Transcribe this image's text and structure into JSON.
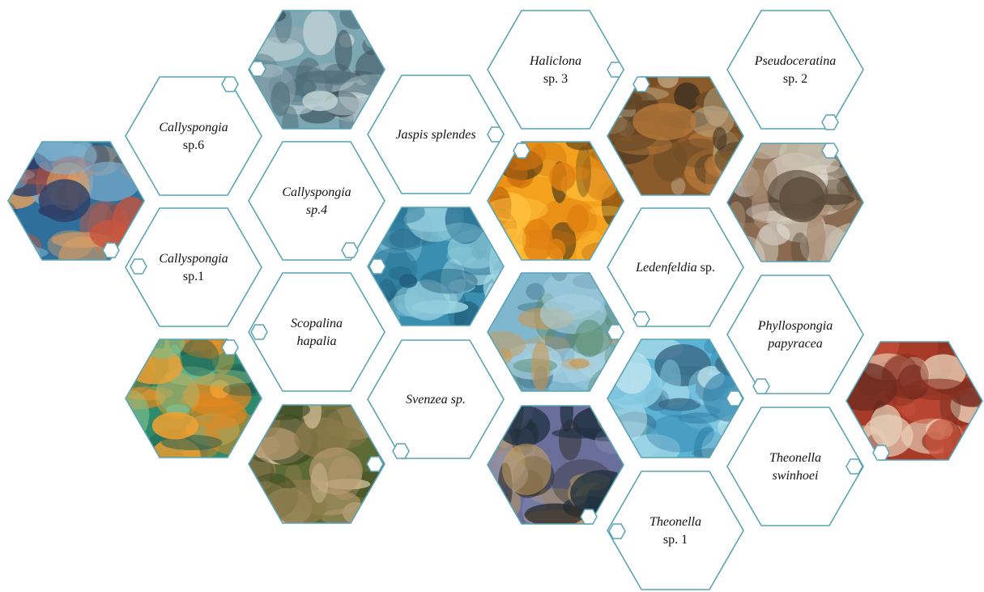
{
  "colors": {
    "outline": "#5aa3b5",
    "text": "#111111"
  },
  "cells": [
    {
      "kind": "photo",
      "photo": "blue-branching-sponge-reef",
      "palette": [
        "#2f6f9c",
        "#7fb0cf",
        "#c8553d",
        "#2e3f66",
        "#e0a060"
      ]
    },
    {
      "kind": "label",
      "parts": [
        {
          "t": "Callyspongia",
          "i": true
        },
        {
          "t": "sp.6",
          "i": false,
          "br": true
        }
      ]
    },
    {
      "kind": "label",
      "parts": [
        {
          "t": "Callyspongia",
          "i": true
        },
        {
          "t": "sp.1",
          "i": false,
          "br": true
        }
      ]
    },
    {
      "kind": "photo",
      "photo": "orange-encrusting-sponge-green-reef",
      "palette": [
        "#2e8a6a",
        "#e8861c",
        "#f2a030",
        "#1f5f55",
        "#7fbf8f"
      ]
    },
    {
      "kind": "photo",
      "photo": "grey-blue-lobed-sponge",
      "palette": [
        "#7ea7b4",
        "#4e6e7c",
        "#c2d4d6",
        "#9aaeb5",
        "#3e5560"
      ]
    },
    {
      "kind": "label",
      "parts": [
        {
          "t": "Callyspongia",
          "i": true
        },
        {
          "t": "sp.4",
          "i": true,
          "br": true
        }
      ]
    },
    {
      "kind": "label",
      "parts": [
        {
          "t": "Scopalina",
          "i": true
        },
        {
          "t": "hapalia",
          "i": true,
          "br": true
        }
      ]
    },
    {
      "kind": "photo",
      "photo": "olive-encrusting-sponge-sea-fan",
      "palette": [
        "#5c6a34",
        "#8b7a4a",
        "#d9c3a0",
        "#3e4a22",
        "#b89a70"
      ]
    },
    {
      "kind": "label",
      "parts": [
        {
          "t": "Jaspis splendes",
          "i": true
        }
      ]
    },
    {
      "kind": "photo",
      "photo": "blue-tubular-branching-sponge",
      "palette": [
        "#3a8fb0",
        "#8cc9da",
        "#1f5e7a",
        "#a8dce8",
        "#2a7293"
      ]
    },
    {
      "kind": "label",
      "parts": [
        {
          "t": "Svenzea sp.",
          "i": true
        }
      ]
    },
    {
      "kind": "label",
      "parts": [
        {
          "t": "Haliclona",
          "i": true
        },
        {
          "t": "sp. 3",
          "i": false,
          "br": true
        }
      ]
    },
    {
      "kind": "photo",
      "photo": "bright-orange-massive-sponge",
      "palette": [
        "#f4a21e",
        "#e07f10",
        "#ffc23d",
        "#6a4a1a",
        "#c86a0c"
      ]
    },
    {
      "kind": "photo",
      "photo": "pale-blue-encrusting-sponge",
      "palette": [
        "#7fb7cf",
        "#a9d2e2",
        "#5b8c70",
        "#c89a5a",
        "#4d7f96"
      ]
    },
    {
      "kind": "photo",
      "photo": "purple-grey-sponge-dark-reef",
      "palette": [
        "#6a6e9a",
        "#2e2a28",
        "#c8a25a",
        "#8a8fb8",
        "#1f3040"
      ]
    },
    {
      "kind": "photo",
      "photo": "brown-rough-massive-sponge",
      "palette": [
        "#8a5a2a",
        "#b87a3a",
        "#3e3020",
        "#c8b898",
        "#6a4a26"
      ]
    },
    {
      "kind": "label",
      "parts": [
        {
          "t": "Ledenfeldia",
          "i": true
        },
        {
          "t": " sp.",
          "i": false
        }
      ]
    },
    {
      "kind": "photo",
      "photo": "blue-foliose-leaf-sponge",
      "palette": [
        "#5ab4d4",
        "#8fd0e6",
        "#2e7fa8",
        "#c8e8f0",
        "#3a6a88"
      ]
    },
    {
      "kind": "label",
      "parts": [
        {
          "t": "Theonella",
          "i": true
        },
        {
          "t": "sp. 1",
          "i": false,
          "br": true
        }
      ]
    },
    {
      "kind": "label",
      "parts": [
        {
          "t": "Pseudoceratina",
          "i": true
        },
        {
          "t": "sp. 2",
          "i": false,
          "br": true
        }
      ]
    },
    {
      "kind": "photo",
      "photo": "brown-tube-sponge-sand",
      "palette": [
        "#8a6a50",
        "#c8c0b0",
        "#5a4a3a",
        "#a88a70",
        "#e0dcd4"
      ]
    },
    {
      "kind": "label",
      "parts": [
        {
          "t": "Phyllospongia",
          "i": true
        },
        {
          "t": "papyracea",
          "i": true,
          "br": true
        }
      ]
    },
    {
      "kind": "label",
      "parts": [
        {
          "t": "Theonella",
          "i": true
        },
        {
          "t": "swinhoei",
          "i": true,
          "br": true
        }
      ]
    },
    {
      "kind": "photo",
      "photo": "red-barrel-sponge",
      "palette": [
        "#a83a28",
        "#c8503a",
        "#6a2a20",
        "#e8d0b8",
        "#8a3020"
      ]
    }
  ]
}
